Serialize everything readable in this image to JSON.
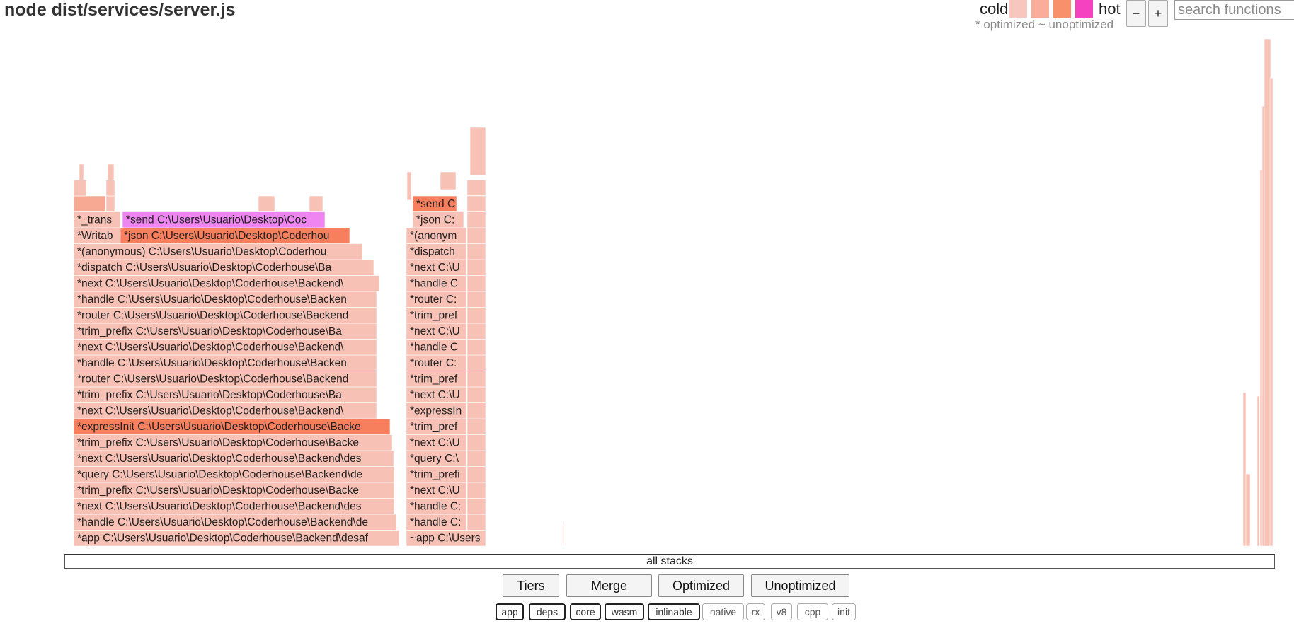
{
  "header": {
    "title": "node dist/services/server.js",
    "legend_cold": "cold",
    "legend_hot": "hot",
    "legend_colors": [
      "#f7c6bc",
      "#f9ad9a",
      "#f8906b",
      "#f442c0"
    ],
    "legend_note": "* optimized ~ unoptimized",
    "zoom_out_label": "−",
    "zoom_in_label": "+",
    "search_placeholder": "search functions"
  },
  "flamegraph": {
    "colors": {
      "cold": "#f7c1b6",
      "warm": "#f8a993",
      "hot": "#f77f5d",
      "selected": "#ef85f0"
    },
    "left_stack": [
      "*app C:\\Users\\Usuario\\Desktop\\Coderhouse\\Backend\\desaf",
      "*handle C:\\Users\\Usuario\\Desktop\\Coderhouse\\Backend\\de",
      "*next C:\\Users\\Usuario\\Desktop\\Coderhouse\\Backend\\des",
      "*trim_prefix C:\\Users\\Usuario\\Desktop\\Coderhouse\\Backe",
      "*query C:\\Users\\Usuario\\Desktop\\Coderhouse\\Backend\\de",
      "*next C:\\Users\\Usuario\\Desktop\\Coderhouse\\Backend\\des",
      "*trim_prefix C:\\Users\\Usuario\\Desktop\\Coderhouse\\Backe",
      "*expressInit C:\\Users\\Usuario\\Desktop\\Coderhouse\\Backe",
      "*next C:\\Users\\Usuario\\Desktop\\Coderhouse\\Backend\\",
      "*trim_prefix C:\\Users\\Usuario\\Desktop\\Coderhouse\\Ba",
      "*router C:\\Users\\Usuario\\Desktop\\Coderhouse\\Backend",
      "*handle C:\\Users\\Usuario\\Desktop\\Coderhouse\\Backen",
      "*next C:\\Users\\Usuario\\Desktop\\Coderhouse\\Backend\\",
      "*trim_prefix C:\\Users\\Usuario\\Desktop\\Coderhouse\\Ba",
      "*router C:\\Users\\Usuario\\Desktop\\Coderhouse\\Backend",
      "*handle C:\\Users\\Usuario\\Desktop\\Coderhouse\\Backen",
      "*next C:\\Users\\Usuario\\Desktop\\Coderhouse\\Backend\\",
      "*dispatch C:\\Users\\Usuario\\Desktop\\Coderhouse\\Ba",
      "*(anonymous) C:\\Users\\Usuario\\Desktop\\Coderhou",
      "*Writab",
      "*_trans"
    ],
    "left_upper": [
      "*json C:\\Users\\Usuario\\Desktop\\Coderhou",
      "*send C:\\Users\\Usuario\\Desktop\\Coc"
    ],
    "mid_stack": [
      "~app C:\\Users",
      "*handle C:",
      "*handle C:",
      "*next C:\\U",
      "*trim_prefi",
      "*query C:\\",
      "*next C:\\U",
      "*trim_pref",
      "*expressIn",
      "*next C:\\U",
      "*trim_pref",
      "*router C:",
      "*handle C",
      "*next C:\\U",
      "*trim_pref",
      "*router C:",
      "*handle C",
      "*next C:\\U",
      "*dispatch",
      "*(anonym",
      "*json C:",
      "*send C"
    ],
    "root_label": "all stacks"
  },
  "controls": {
    "buttons": [
      "Tiers",
      "Merge",
      "Optimized",
      "Unoptimized"
    ],
    "filters": [
      {
        "label": "app",
        "active": true
      },
      {
        "label": "deps",
        "active": true
      },
      {
        "label": "core",
        "active": true
      },
      {
        "label": "wasm",
        "active": true
      },
      {
        "label": "inlinable",
        "active": true
      },
      {
        "label": "native",
        "active": false
      },
      {
        "label": "rx",
        "active": false
      },
      {
        "label": "v8",
        "active": false
      },
      {
        "label": "cpp",
        "active": false
      },
      {
        "label": "init",
        "active": false
      }
    ]
  }
}
